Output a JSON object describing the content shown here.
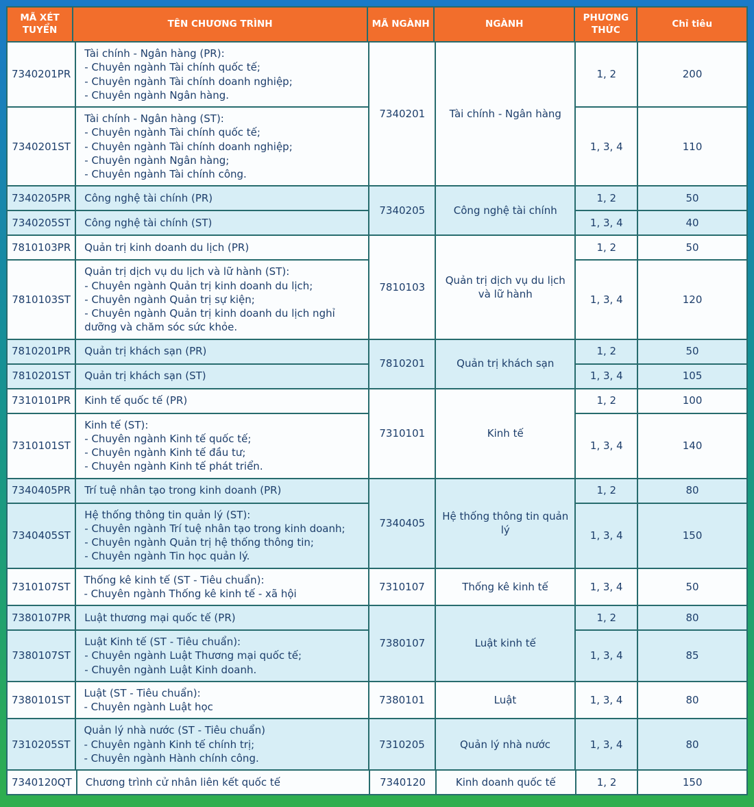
{
  "header": {
    "columns": [
      "MÃ XÉT TUYỂN",
      "TÊN CHƯƠNG TRÌNH",
      "MÃ NGÀNH",
      "NGÀNH",
      "PHƯƠNG THỨC",
      "Chỉ tiêu"
    ]
  },
  "colors": {
    "header_bg": "#f26e2c",
    "header_text": "#ffffff",
    "row_white": "#fbfdfe",
    "row_cyan": "#d7eef6",
    "grid_border": "#266b6d",
    "body_text": "#1d3e6b",
    "frame_top": "#1a7ac8",
    "frame_middle": "#169195",
    "frame_bottom": "#2fae4e"
  },
  "groups": [
    {
      "major_code": "7340201",
      "major": "Tài chính - Ngân hàng",
      "shade": "white",
      "programs": [
        {
          "code": "7340201PR",
          "lines": [
            "Tài chính - Ngân hàng (PR):",
            "- Chuyên ngành Tài chính quốc tế;",
            "- Chuyên ngành Tài chính doanh nghiệp;",
            "- Chuyên ngành Ngân hàng."
          ],
          "method": "1, 2",
          "quota": "200"
        },
        {
          "code": "7340201ST",
          "lines": [
            "Tài chính - Ngân hàng (ST):",
            "- Chuyên ngành Tài chính quốc tế;",
            "- Chuyên ngành Tài chính doanh nghiệp;",
            "- Chuyên ngành Ngân hàng;",
            "- Chuyên ngành Tài chính công."
          ],
          "method": "1, 3, 4",
          "quota": "110"
        }
      ]
    },
    {
      "major_code": "7340205",
      "major": "Công nghệ tài chính",
      "shade": "cyan",
      "programs": [
        {
          "code": "7340205PR",
          "lines": [
            "Công nghệ tài chính (PR)"
          ],
          "method": "1, 2",
          "quota": "50"
        },
        {
          "code": "7340205ST",
          "lines": [
            "Công nghệ tài chính (ST)"
          ],
          "method": "1, 3, 4",
          "quota": "40"
        }
      ]
    },
    {
      "major_code": "7810103",
      "major": "Quản trị dịch vụ du lịch và lữ hành",
      "shade": "white",
      "programs": [
        {
          "code": "7810103PR",
          "lines": [
            "Quản trị kinh doanh du lịch (PR)"
          ],
          "method": "1, 2",
          "quota": "50"
        },
        {
          "code": "7810103ST",
          "lines": [
            "Quản trị dịch vụ du lịch và lữ hành (ST):",
            "- Chuyên ngành Quản trị kinh doanh du lịch;",
            "- Chuyên ngành Quản trị sự kiện;",
            "- Chuyên ngành Quản trị kinh doanh du lịch nghỉ dưỡng và chăm sóc sức khỏe."
          ],
          "method": "1, 3, 4",
          "quota": "120"
        }
      ]
    },
    {
      "major_code": "7810201",
      "major": "Quản trị khách sạn",
      "shade": "cyan",
      "programs": [
        {
          "code": "7810201PR",
          "lines": [
            "Quản trị khách sạn (PR)"
          ],
          "method": "1, 2",
          "quota": "50"
        },
        {
          "code": "7810201ST",
          "lines": [
            "Quản trị khách sạn (ST)"
          ],
          "method": "1, 3, 4",
          "quota": "105"
        }
      ]
    },
    {
      "major_code": "7310101",
      "major": "Kinh tế",
      "shade": "white",
      "programs": [
        {
          "code": "7310101PR",
          "lines": [
            "Kinh tế quốc tế (PR)"
          ],
          "method": "1, 2",
          "quota": "100"
        },
        {
          "code": "7310101ST",
          "lines": [
            "Kinh tế (ST):",
            "- Chuyên ngành Kinh tế quốc tế;",
            "- Chuyên ngành Kinh tế đầu tư;",
            "- Chuyên ngành Kinh tế phát triển."
          ],
          "method": "1, 3, 4",
          "quota": "140"
        }
      ]
    },
    {
      "major_code": "7340405",
      "major": "Hệ thống thông tin quản lý",
      "shade": "cyan",
      "programs": [
        {
          "code": "7340405PR",
          "lines": [
            "Trí tuệ nhân tạo trong kinh doanh (PR)"
          ],
          "method": "1, 2",
          "quota": "80"
        },
        {
          "code": "7340405ST",
          "lines": [
            "Hệ thống thông tin quản lý (ST):",
            "- Chuyên ngành Trí tuệ nhân tạo trong kinh doanh;",
            "- Chuyên ngành Quản trị hệ thống thông tin;",
            "- Chuyên ngành Tin học quản lý."
          ],
          "method": "1, 3, 4",
          "quota": "150"
        }
      ]
    },
    {
      "major_code": "7310107",
      "major": "Thống kê kinh tế",
      "shade": "white",
      "programs": [
        {
          "code": "7310107ST",
          "lines": [
            "Thống kê kinh tế (ST - Tiêu chuẩn):",
            "- Chuyên ngành Thống kê kinh tế - xã hội"
          ],
          "method": "1, 3, 4",
          "quota": "50"
        }
      ]
    },
    {
      "major_code": "7380107",
      "major": "Luật kinh tế",
      "shade": "cyan",
      "programs": [
        {
          "code": "7380107PR",
          "lines": [
            "Luật thương mại quốc tế (PR)"
          ],
          "method": "1, 2",
          "quota": "80"
        },
        {
          "code": "7380107ST",
          "lines": [
            "Luật Kinh tế (ST - Tiêu chuẩn):",
            "- Chuyên ngành Luật Thương mại quốc tế;",
            "- Chuyên ngành Luật Kinh doanh."
          ],
          "method": "1, 3, 4",
          "quota": "85"
        }
      ]
    },
    {
      "major_code": "7380101",
      "major": "Luật",
      "shade": "white",
      "programs": [
        {
          "code": "7380101ST",
          "lines": [
            "Luật (ST - Tiêu chuẩn):",
            "- Chuyên ngành Luật học"
          ],
          "method": "1, 3, 4",
          "quota": "80"
        }
      ]
    },
    {
      "major_code": "7310205",
      "major": "Quản lý nhà nước",
      "shade": "cyan",
      "programs": [
        {
          "code": "7310205ST",
          "lines": [
            "Quản lý nhà nước (ST - Tiêu chuẩn)",
            "- Chuyên ngành Kinh tế chính trị;",
            "- Chuyên ngành Hành chính công."
          ],
          "method": "1, 3, 4",
          "quota": "80"
        }
      ]
    },
    {
      "major_code": "7340120",
      "major": "Kinh doanh quốc tế",
      "shade": "white",
      "programs": [
        {
          "code": "7340120QT",
          "lines": [
            "Chương trình cử nhân liên kết quốc tế"
          ],
          "method": "1, 2",
          "quota": "150"
        }
      ]
    }
  ]
}
